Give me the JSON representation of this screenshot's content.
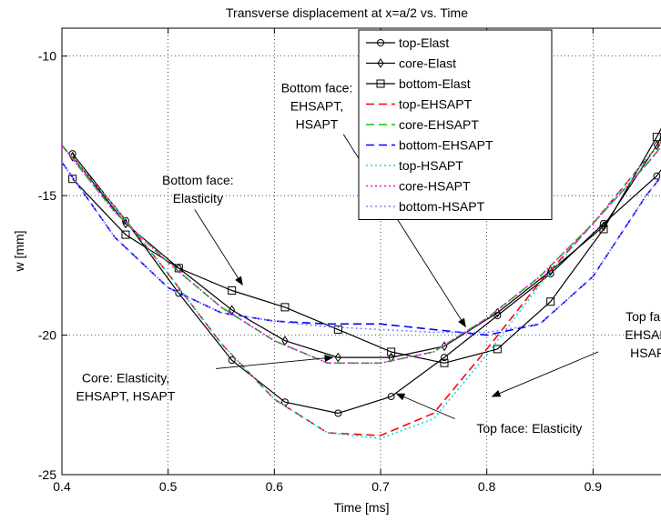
{
  "chart_data": {
    "type": "line",
    "title": "Transverse displacement at x=a/2 vs. Time",
    "xlabel": "Time [ms]",
    "ylabel": "w [mm]",
    "xlim": [
      0.4,
      1.0
    ],
    "ylim": [
      -25,
      -9
    ],
    "xticks": [
      0.4,
      0.5,
      0.6,
      0.7,
      0.8,
      0.9
    ],
    "yticks": [
      -10,
      -15,
      -20,
      -25
    ],
    "xtick_labels": [
      "0.4",
      "0.5",
      "0.6",
      "0.7",
      "0.8",
      "0.9"
    ],
    "ytick_labels": [
      "-10",
      "-15",
      "-20",
      "-25"
    ],
    "grid": true,
    "legend_position": "top-right",
    "series": [
      {
        "name": "top-Elast",
        "color": "#000000",
        "dash": "solid",
        "marker": "circle",
        "x": [
          0.41,
          0.46,
          0.51,
          0.56,
          0.61,
          0.66,
          0.71,
          0.76,
          0.81,
          0.86,
          0.91,
          0.96,
          1.0
        ],
        "y": [
          -13.5,
          -15.9,
          -18.5,
          -20.9,
          -22.4,
          -22.8,
          -22.2,
          -20.8,
          -19.3,
          -17.8,
          -16.0,
          -14.3,
          -12.2
        ]
      },
      {
        "name": "core-Elast",
        "color": "#000000",
        "dash": "solid",
        "marker": "diamond",
        "x": [
          0.41,
          0.46,
          0.51,
          0.56,
          0.61,
          0.66,
          0.71,
          0.76,
          0.81,
          0.86,
          0.91,
          0.96,
          1.0
        ],
        "y": [
          -13.6,
          -16.0,
          -17.6,
          -19.1,
          -20.2,
          -20.8,
          -20.8,
          -20.4,
          -19.2,
          -17.7,
          -16.1,
          -13.2,
          -10.3
        ]
      },
      {
        "name": "bottom-Elast",
        "color": "#000000",
        "dash": "solid",
        "marker": "square",
        "x": [
          0.41,
          0.46,
          0.51,
          0.56,
          0.61,
          0.66,
          0.71,
          0.76,
          0.81,
          0.86,
          0.91,
          0.96,
          1.0
        ],
        "y": [
          -14.4,
          -16.4,
          -17.6,
          -18.4,
          -19.0,
          -19.8,
          -20.6,
          -21.0,
          -20.5,
          -18.8,
          -16.2,
          -12.9,
          -10.0
        ]
      },
      {
        "name": "top-EHSAPT",
        "color": "#ff0000",
        "dash": "dashed",
        "marker": "none",
        "x": [
          0.4,
          0.45,
          0.5,
          0.55,
          0.6,
          0.65,
          0.7,
          0.75,
          0.8,
          0.85,
          0.9,
          0.95,
          1.0
        ],
        "y": [
          -13.2,
          -15.4,
          -17.8,
          -20.3,
          -22.3,
          -23.5,
          -23.6,
          -22.8,
          -20.5,
          -18.1,
          -16.0,
          -13.7,
          -11.5
        ]
      },
      {
        "name": "core-EHSAPT",
        "color": "#00cc00",
        "dash": "dashed",
        "marker": "none",
        "x": [
          0.4,
          0.45,
          0.5,
          0.55,
          0.6,
          0.65,
          0.7,
          0.75,
          0.8,
          0.85,
          0.9,
          0.95,
          1.0
        ],
        "y": [
          -13.2,
          -15.6,
          -17.4,
          -19.0,
          -20.2,
          -21.0,
          -21.0,
          -20.6,
          -19.4,
          -17.9,
          -16.0,
          -13.9,
          -11.6
        ]
      },
      {
        "name": "bottom-EHSAPT",
        "color": "#0000ff",
        "dash": "dashed",
        "marker": "none",
        "x": [
          0.4,
          0.45,
          0.5,
          0.55,
          0.6,
          0.65,
          0.7,
          0.75,
          0.8,
          0.85,
          0.9,
          0.95,
          1.0
        ],
        "y": [
          -13.8,
          -16.5,
          -18.3,
          -19.2,
          -19.5,
          -19.6,
          -19.6,
          -19.8,
          -20.0,
          -19.6,
          -17.9,
          -15.0,
          -12.6
        ]
      },
      {
        "name": "top-HSAPT",
        "color": "#00e0e0",
        "dash": "dotted",
        "marker": "none",
        "x": [
          0.4,
          0.45,
          0.5,
          0.55,
          0.6,
          0.65,
          0.7,
          0.75,
          0.8,
          0.85,
          0.9,
          0.95,
          1.0
        ],
        "y": [
          -13.2,
          -15.4,
          -17.8,
          -20.3,
          -22.3,
          -23.5,
          -23.7,
          -23.0,
          -20.7,
          -18.2,
          -16.0,
          -13.7,
          -11.5
        ]
      },
      {
        "name": "core-HSAPT",
        "color": "#ff00ff",
        "dash": "dotted",
        "marker": "none",
        "x": [
          0.4,
          0.45,
          0.5,
          0.55,
          0.6,
          0.65,
          0.7,
          0.75,
          0.8,
          0.85,
          0.9,
          0.95,
          1.0
        ],
        "y": [
          -13.2,
          -15.6,
          -17.4,
          -19.0,
          -20.2,
          -21.0,
          -21.0,
          -20.6,
          -19.4,
          -17.9,
          -16.0,
          -13.9,
          -11.6
        ]
      },
      {
        "name": "bottom-HSAPT",
        "color": "#8080ff",
        "dash": "dotted",
        "marker": "none",
        "x": [
          0.4,
          0.45,
          0.5,
          0.55,
          0.6,
          0.65,
          0.7,
          0.75,
          0.8,
          0.85,
          0.9,
          0.95,
          1.0
        ],
        "y": [
          -13.8,
          -16.5,
          -18.3,
          -19.2,
          -19.5,
          -19.7,
          -19.8,
          -19.9,
          -19.9,
          -19.6,
          -17.9,
          -15.0,
          -12.6
        ]
      }
    ],
    "annotations": [
      {
        "name": "bottom-face-ehsapt",
        "lines": [
          "Bottom face:",
          "EHSAPT,",
          "HSAPT"
        ],
        "text_x": 0.64,
        "text_y": -11.3,
        "arrow_from": [
          0.665,
          -12.8
        ],
        "arrow_to": [
          0.78,
          -19.7
        ]
      },
      {
        "name": "bottom-face-elasticity",
        "lines": [
          "Bottom face:",
          "Elasticity"
        ],
        "text_x": 0.528,
        "text_y": -14.6,
        "arrow_from": [
          0.525,
          -15.5
        ],
        "arrow_to": [
          0.57,
          -18.2
        ]
      },
      {
        "name": "core-all",
        "lines": [
          "Core: Elasticity,",
          "EHSAPT, HSAPT"
        ],
        "text_x": 0.46,
        "text_y": -21.7,
        "arrow_from": [
          0.545,
          -21.2
        ],
        "arrow_to": [
          0.655,
          -20.8
        ]
      },
      {
        "name": "top-face-elasticity",
        "lines": [
          "Top face: Elasticity"
        ],
        "text_x": 0.84,
        "text_y": -23.5,
        "arrow_from": [
          0.77,
          -23.0
        ],
        "arrow_to": [
          0.715,
          -22.1
        ]
      },
      {
        "name": "top-face-ehsapt",
        "lines": [
          "Top face:",
          "EHSAPT,",
          "HSAPT"
        ],
        "text_x": 0.955,
        "text_y": -19.5,
        "arrow_from": [
          0.905,
          -20.6
        ],
        "arrow_to": [
          0.805,
          -22.2
        ]
      }
    ]
  }
}
